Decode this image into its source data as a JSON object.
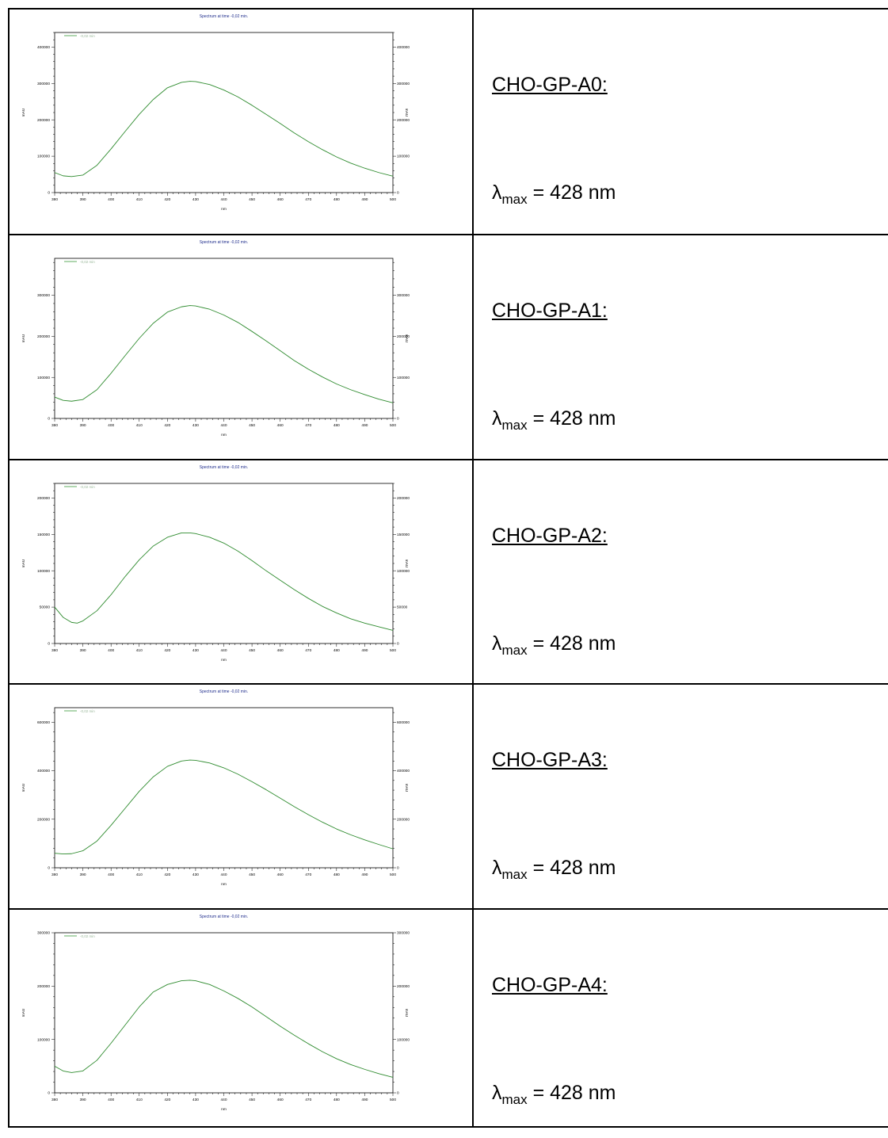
{
  "rows": [
    {
      "sample": "CHO-GP-A0:",
      "lambda_symbol": "λ",
      "lambda_sub": "max",
      "lambda_value": "= 428 nm",
      "chart_data": {
        "type": "line",
        "title": "Spectrum at time -0,02 min.",
        "legend": "-0,02 min",
        "xlabel": "nm",
        "ylabel": "mAU",
        "xlim": [
          380,
          500
        ],
        "ylim": [
          0,
          440000
        ],
        "x_ticks": [
          380,
          390,
          400,
          410,
          420,
          430,
          440,
          450,
          460,
          470,
          480,
          490,
          500
        ],
        "y_ticks": [
          0,
          100000,
          200000,
          300000,
          400000
        ],
        "series": [
          {
            "name": "-0,02 min",
            "x": [
              380,
              383,
              386,
              390,
              395,
              400,
              405,
              410,
              415,
              420,
              425,
              428,
              430,
              435,
              440,
              445,
              450,
              455,
              460,
              465,
              470,
              475,
              480,
              485,
              490,
              495,
              500
            ],
            "y": [
              55000,
              46000,
              44000,
              48000,
              75000,
              120000,
              168000,
              215000,
              256000,
              288000,
              303000,
              306000,
              305000,
              297000,
              282000,
              263000,
              240000,
              215000,
              190000,
              164000,
              140000,
              118000,
              98000,
              81000,
              67000,
              55000,
              45000
            ]
          }
        ]
      }
    },
    {
      "sample": "CHO-GP-A1:",
      "lambda_symbol": "λ",
      "lambda_sub": "max",
      "lambda_value": "= 428 nm",
      "chart_data": {
        "type": "line",
        "title": "Spectrum at time -0,02 min.",
        "legend": "-0,02 min",
        "xlabel": "nm",
        "ylabel": "mAU",
        "xlim": [
          380,
          500
        ],
        "ylim": [
          0,
          390000
        ],
        "x_ticks": [
          380,
          390,
          400,
          410,
          420,
          430,
          440,
          450,
          460,
          470,
          480,
          490,
          500
        ],
        "y_ticks": [
          0,
          100000,
          200000,
          300000
        ],
        "series": [
          {
            "name": "-0,02 min",
            "x": [
              380,
              383,
              386,
              390,
              395,
              400,
              405,
              410,
              415,
              420,
              425,
              428,
              430,
              435,
              440,
              445,
              450,
              455,
              460,
              465,
              470,
              475,
              480,
              485,
              490,
              495,
              500
            ],
            "y": [
              52000,
              44000,
              42000,
              46000,
              70000,
              110000,
              153000,
              195000,
              232000,
              259000,
              272000,
              275000,
              274000,
              266000,
              252000,
              234000,
              212000,
              189000,
              165000,
              141000,
              120000,
              101000,
              84000,
              70000,
              58000,
              47000,
              38000
            ]
          }
        ]
      }
    },
    {
      "sample": "CHO-GP-A2:",
      "lambda_symbol": "λ",
      "lambda_sub": "max",
      "lambda_value": "= 428 nm",
      "chart_data": {
        "type": "line",
        "title": "Spectrum at time -0,02 min.",
        "legend": "-0,02 min",
        "xlabel": "nm",
        "ylabel": "mAU",
        "xlim": [
          380,
          500
        ],
        "ylim": [
          0,
          220000
        ],
        "x_ticks": [
          380,
          390,
          400,
          410,
          420,
          430,
          440,
          450,
          460,
          470,
          480,
          490,
          500
        ],
        "y_ticks": [
          0,
          50000,
          100000,
          150000,
          200000
        ],
        "series": [
          {
            "name": "-0,02 min",
            "x": [
              380,
              383,
              386,
              388,
              390,
              395,
              400,
              405,
              410,
              415,
              420,
              425,
              428,
              430,
              435,
              440,
              445,
              450,
              455,
              460,
              465,
              470,
              475,
              480,
              485,
              490,
              495,
              500
            ],
            "y": [
              50000,
              36000,
              29000,
              28000,
              31000,
              45000,
              67000,
              92000,
              115000,
              134000,
              146000,
              152000,
              152000,
              151000,
              146000,
              138000,
              127000,
              114000,
              100000,
              87000,
              74000,
              62000,
              51000,
              42000,
              34000,
              28000,
              23000,
              18000
            ]
          }
        ]
      }
    },
    {
      "sample": "CHO-GP-A3:",
      "lambda_symbol": "λ",
      "lambda_sub": "max",
      "lambda_value": "= 428 nm",
      "chart_data": {
        "type": "line",
        "title": "Spectrum at time -0,02 min.",
        "legend": "-0,02 min",
        "xlabel": "nm",
        "ylabel": "mAU",
        "xlim": [
          380,
          500
        ],
        "ylim": [
          0,
          660000
        ],
        "x_ticks": [
          380,
          390,
          400,
          410,
          420,
          430,
          440,
          450,
          460,
          470,
          480,
          490,
          500
        ],
        "y_ticks": [
          0,
          200000,
          400000,
          600000
        ],
        "series": [
          {
            "name": "-0,02 min",
            "x": [
              380,
              383,
              386,
              390,
              395,
              400,
              405,
              410,
              415,
              420,
              425,
              428,
              430,
              435,
              440,
              445,
              450,
              455,
              460,
              465,
              470,
              475,
              480,
              485,
              490,
              495,
              500
            ],
            "y": [
              60000,
              57000,
              58000,
              70000,
              110000,
              175000,
              245000,
              315000,
              375000,
              418000,
              440000,
              444000,
              443000,
              432000,
              412000,
              386000,
              355000,
              322000,
              287000,
              252000,
              219000,
              188000,
              160000,
              136000,
              115000,
              96000,
              78000
            ]
          }
        ]
      }
    },
    {
      "sample": "CHO-GP-A4:",
      "lambda_symbol": "λ",
      "lambda_sub": "max",
      "lambda_value": "= 428 nm",
      "chart_data": {
        "type": "line",
        "title": "Spectrum at time -0,02 min.",
        "legend": "-0,02 min",
        "xlabel": "nm",
        "ylabel": "mAU",
        "xlim": [
          380,
          500
        ],
        "ylim": [
          0,
          300000
        ],
        "x_ticks": [
          380,
          390,
          400,
          410,
          420,
          430,
          440,
          450,
          460,
          470,
          480,
          490,
          500
        ],
        "y_ticks": [
          0,
          100000,
          200000,
          300000
        ],
        "series": [
          {
            "name": "-0,02 min",
            "x": [
              380,
              383,
              386,
              390,
              395,
              400,
              405,
              410,
              415,
              420,
              425,
              428,
              430,
              435,
              440,
              445,
              450,
              455,
              460,
              465,
              470,
              475,
              480,
              485,
              490,
              495,
              500
            ],
            "y": [
              50000,
              41000,
              38000,
              41000,
              61000,
              93000,
              127000,
              161000,
              189000,
              203000,
              210000,
              211000,
              210000,
              203000,
              191000,
              177000,
              161000,
              143000,
              125000,
              108000,
              92000,
              77000,
              64000,
              53000,
              44000,
              36000,
              29000
            ]
          }
        ]
      }
    }
  ]
}
